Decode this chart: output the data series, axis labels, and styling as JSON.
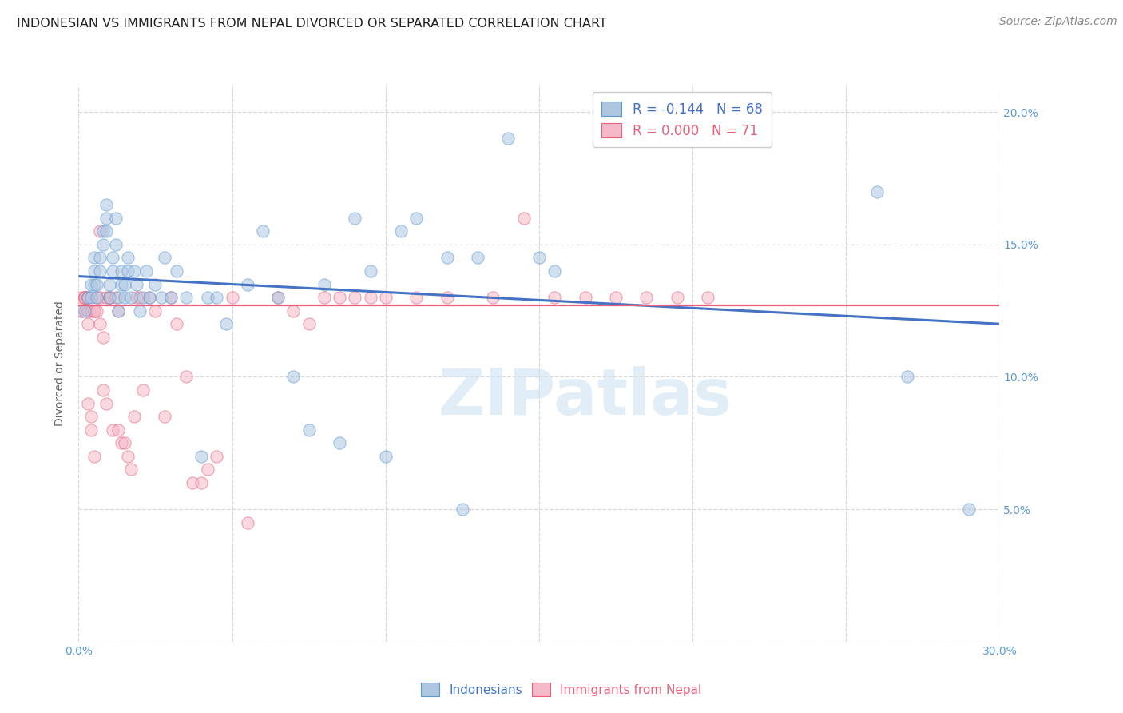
{
  "title": "INDONESIAN VS IMMIGRANTS FROM NEPAL DIVORCED OR SEPARATED CORRELATION CHART",
  "source": "Source: ZipAtlas.com",
  "ylabel": "Divorced or Separated",
  "xlim": [
    0.0,
    0.3
  ],
  "ylim": [
    0.0,
    0.21
  ],
  "xticks": [
    0.0,
    0.05,
    0.1,
    0.15,
    0.2,
    0.25,
    0.3
  ],
  "yticks": [
    0.0,
    0.05,
    0.1,
    0.15,
    0.2
  ],
  "ytick_labels_right": [
    "",
    "5.0%",
    "10.0%",
    "15.0%",
    "20.0%"
  ],
  "xtick_labels": [
    "0.0%",
    "",
    "",
    "",
    "",
    "",
    "30.0%"
  ],
  "blue_R": "-0.144",
  "blue_N": "68",
  "pink_R": "0.000",
  "pink_N": "71",
  "blue_color": "#aec6e0",
  "pink_color": "#f5b8c8",
  "blue_edge_color": "#5b9bd5",
  "pink_edge_color": "#e8607a",
  "blue_line_color": "#4472c4",
  "pink_line_color": "#e8607a",
  "tick_color": "#5b9bd5",
  "legend_labels": [
    "Indonesians",
    "Immigrants from Nepal"
  ],
  "watermark": "ZIPatlas",
  "blue_scatter_x": [
    0.002,
    0.003,
    0.004,
    0.004,
    0.005,
    0.005,
    0.005,
    0.006,
    0.006,
    0.007,
    0.007,
    0.008,
    0.008,
    0.009,
    0.009,
    0.009,
    0.01,
    0.01,
    0.011,
    0.011,
    0.012,
    0.012,
    0.013,
    0.013,
    0.014,
    0.014,
    0.015,
    0.015,
    0.016,
    0.016,
    0.017,
    0.018,
    0.019,
    0.02,
    0.021,
    0.022,
    0.023,
    0.025,
    0.027,
    0.028,
    0.03,
    0.032,
    0.035,
    0.04,
    0.042,
    0.045,
    0.048,
    0.055,
    0.06,
    0.065,
    0.07,
    0.075,
    0.08,
    0.085,
    0.09,
    0.095,
    0.1,
    0.105,
    0.11,
    0.12,
    0.125,
    0.13,
    0.14,
    0.15,
    0.155,
    0.26,
    0.27,
    0.29
  ],
  "blue_scatter_y": [
    0.125,
    0.13,
    0.13,
    0.135,
    0.135,
    0.14,
    0.145,
    0.13,
    0.135,
    0.14,
    0.145,
    0.15,
    0.155,
    0.155,
    0.16,
    0.165,
    0.13,
    0.135,
    0.14,
    0.145,
    0.15,
    0.16,
    0.125,
    0.13,
    0.135,
    0.14,
    0.13,
    0.135,
    0.14,
    0.145,
    0.13,
    0.14,
    0.135,
    0.125,
    0.13,
    0.14,
    0.13,
    0.135,
    0.13,
    0.145,
    0.13,
    0.14,
    0.13,
    0.07,
    0.13,
    0.13,
    0.12,
    0.135,
    0.155,
    0.13,
    0.1,
    0.08,
    0.135,
    0.075,
    0.16,
    0.14,
    0.07,
    0.155,
    0.16,
    0.145,
    0.05,
    0.145,
    0.19,
    0.145,
    0.14,
    0.17,
    0.1,
    0.05
  ],
  "pink_scatter_x": [
    0.001,
    0.001,
    0.001,
    0.002,
    0.002,
    0.002,
    0.002,
    0.003,
    0.003,
    0.003,
    0.003,
    0.003,
    0.004,
    0.004,
    0.004,
    0.005,
    0.005,
    0.005,
    0.006,
    0.006,
    0.007,
    0.007,
    0.007,
    0.008,
    0.008,
    0.009,
    0.009,
    0.01,
    0.01,
    0.011,
    0.012,
    0.013,
    0.013,
    0.014,
    0.015,
    0.016,
    0.017,
    0.018,
    0.019,
    0.02,
    0.021,
    0.023,
    0.025,
    0.028,
    0.03,
    0.032,
    0.035,
    0.037,
    0.04,
    0.042,
    0.045,
    0.05,
    0.055,
    0.065,
    0.07,
    0.075,
    0.08,
    0.085,
    0.09,
    0.095,
    0.1,
    0.11,
    0.12,
    0.135,
    0.145,
    0.155,
    0.165,
    0.175,
    0.185,
    0.195,
    0.205
  ],
  "pink_scatter_y": [
    0.125,
    0.125,
    0.13,
    0.13,
    0.13,
    0.13,
    0.13,
    0.13,
    0.13,
    0.125,
    0.12,
    0.09,
    0.125,
    0.085,
    0.08,
    0.125,
    0.125,
    0.07,
    0.13,
    0.125,
    0.155,
    0.13,
    0.12,
    0.115,
    0.095,
    0.13,
    0.09,
    0.13,
    0.13,
    0.08,
    0.13,
    0.125,
    0.08,
    0.075,
    0.075,
    0.07,
    0.065,
    0.085,
    0.13,
    0.13,
    0.095,
    0.13,
    0.125,
    0.085,
    0.13,
    0.12,
    0.1,
    0.06,
    0.06,
    0.065,
    0.07,
    0.13,
    0.045,
    0.13,
    0.125,
    0.12,
    0.13,
    0.13,
    0.13,
    0.13,
    0.13,
    0.13,
    0.13,
    0.13,
    0.16,
    0.13,
    0.13,
    0.13,
    0.13,
    0.13,
    0.13
  ],
  "blue_line_x": [
    0.0,
    0.3
  ],
  "blue_line_y": [
    0.138,
    0.12
  ],
  "pink_line_x": [
    0.0,
    0.3
  ],
  "pink_line_y": [
    0.127,
    0.127
  ],
  "background_color": "#ffffff",
  "grid_color": "#d8d8d8",
  "title_fontsize": 11.5,
  "axis_label_fontsize": 10,
  "tick_fontsize": 10,
  "source_fontsize": 10,
  "marker_size": 120,
  "marker_alpha": 0.55
}
